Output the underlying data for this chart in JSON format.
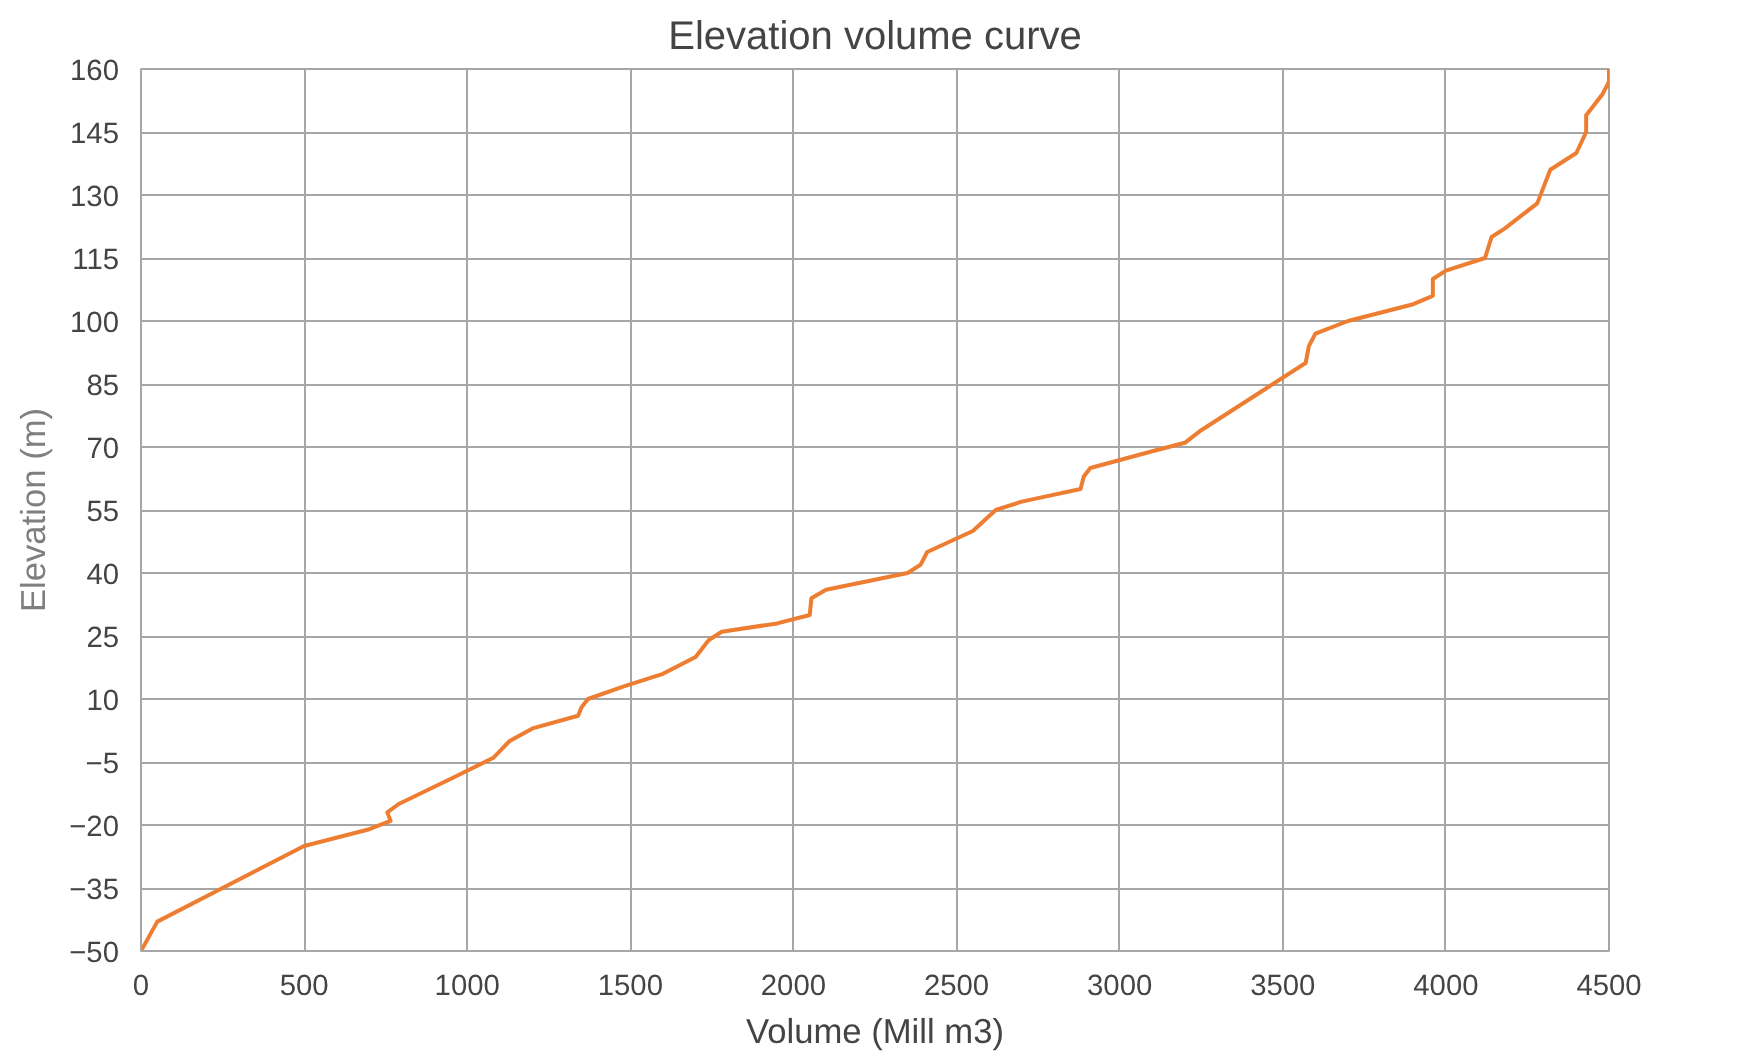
{
  "chart_data": {
    "type": "line",
    "title": "Elevation volume curve",
    "xlabel": "Volume (Mill m3)",
    "ylabel": "Elevation (m)",
    "xlim": [
      0,
      4500
    ],
    "xticks": [
      0,
      500,
      1000,
      1500,
      2000,
      2500,
      3000,
      3500,
      4000,
      4500
    ],
    "ylim": [
      -50,
      160
    ],
    "yticks": [
      -50,
      -35,
      -20,
      -5,
      10,
      25,
      40,
      55,
      70,
      85,
      100,
      115,
      130,
      145,
      160
    ],
    "grid": true,
    "marker": "none",
    "line_style": "solid",
    "series": [
      {
        "color": "#ed7d31",
        "x": [
          0,
          50,
          250,
          500,
          700,
          765,
          755,
          790,
          950,
          1080,
          1130,
          1200,
          1340,
          1350,
          1370,
          1480,
          1600,
          1700,
          1740,
          1780,
          1950,
          2050,
          2055,
          2100,
          2350,
          2390,
          2410,
          2550,
          2620,
          2700,
          2880,
          2890,
          2910,
          3100,
          3200,
          3250,
          3450,
          3570,
          3580,
          3600,
          3700,
          3900,
          3960,
          3960,
          4000,
          4120,
          4140,
          4180,
          4280,
          4300,
          4320,
          4400,
          4430,
          4430,
          4480,
          4500,
          4500
        ],
        "values": [
          -50,
          -43,
          -35,
          -25,
          -21,
          -19,
          -17,
          -15,
          -9,
          -4,
          0,
          3,
          6,
          8,
          10,
          13,
          16,
          20,
          24,
          26,
          28,
          30,
          34,
          36,
          40,
          42,
          45,
          50,
          55,
          57,
          60,
          63,
          65,
          69,
          71,
          74,
          84,
          90,
          94,
          97,
          100,
          104,
          106,
          110,
          112,
          115,
          120,
          122,
          128,
          132,
          136,
          140,
          145,
          149,
          154,
          157,
          160
        ]
      }
    ]
  }
}
